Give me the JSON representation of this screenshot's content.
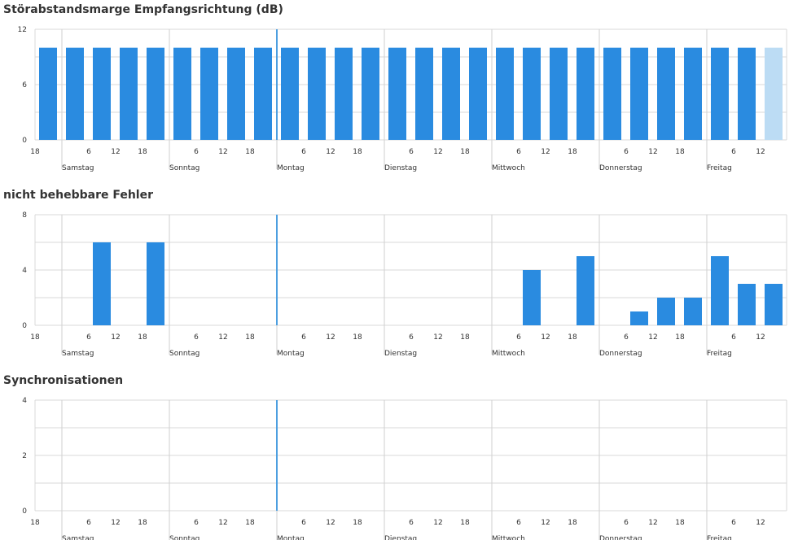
{
  "palette": {
    "bar": "#2a8be0",
    "bar_partial": "#bcdcf4",
    "grid": "#d9d9d9",
    "day_line": "#cfcfcf",
    "now_line": "#4d9fe0"
  },
  "x_axis": {
    "hour_ticks": [
      "18",
      "6",
      "12",
      "18",
      "6",
      "12",
      "18",
      "6",
      "12",
      "18",
      "6",
      "12",
      "18",
      "6",
      "12",
      "18",
      "6",
      "12",
      "18",
      "6",
      "12"
    ],
    "days": [
      "Samstag",
      "Sonntag",
      "Montag",
      "Dienstag",
      "Mittwoch",
      "Donnerstag",
      "Freitag"
    ]
  },
  "chart_data": [
    {
      "type": "bar",
      "title": "Störabstandsmarge Empfangsrichtung (dB)",
      "ylim": [
        0,
        12
      ],
      "y_ticks": [
        "0",
        "6",
        "12"
      ],
      "grid": true,
      "values": [
        10,
        10,
        10,
        10,
        10,
        10,
        10,
        10,
        10,
        10,
        10,
        10,
        10,
        10,
        10,
        10,
        10,
        10,
        10,
        10,
        10,
        10,
        10,
        10,
        10,
        10,
        10
      ],
      "partial_last": true
    },
    {
      "type": "bar",
      "title": "nicht behebbare Fehler",
      "ylim": [
        0,
        8
      ],
      "y_ticks": [
        "0",
        "4",
        "8"
      ],
      "grid": true,
      "values": [
        0,
        0,
        6,
        0,
        6,
        0,
        0,
        0,
        0,
        0,
        0,
        0,
        0,
        0,
        0,
        0,
        0,
        0,
        4,
        0,
        5,
        0,
        1,
        2,
        2,
        5,
        3,
        3
      ],
      "partial_last": false
    },
    {
      "type": "bar",
      "title": "Synchronisationen",
      "ylim": [
        0,
        4
      ],
      "y_ticks": [
        "0",
        "2",
        "4"
      ],
      "grid": true,
      "values": [],
      "partial_last": false
    }
  ]
}
